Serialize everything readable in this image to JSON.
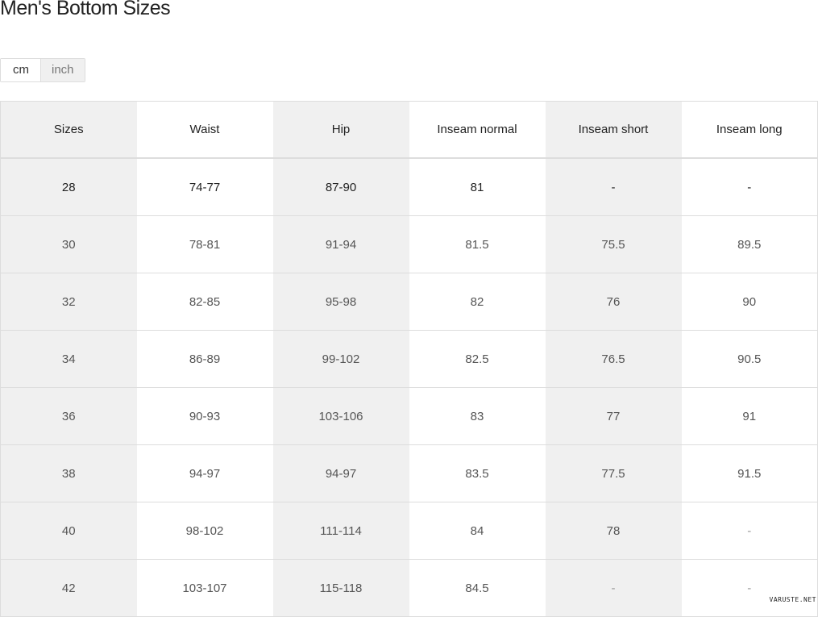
{
  "title": "Men's Bottom Sizes",
  "units": {
    "selected": "cm",
    "options": [
      "cm",
      "inch"
    ]
  },
  "table": {
    "headers": [
      "Sizes",
      "Waist",
      "Hip",
      "Inseam normal",
      "Inseam short",
      "Inseam long"
    ],
    "rows": [
      [
        "28",
        "74-77",
        "87-90",
        "81",
        "-",
        "-"
      ],
      [
        "30",
        "78-81",
        "91-94",
        "81.5",
        "75.5",
        "89.5"
      ],
      [
        "32",
        "82-85",
        "95-98",
        "82",
        "76",
        "90"
      ],
      [
        "34",
        "86-89",
        "99-102",
        "82.5",
        "76.5",
        "90.5"
      ],
      [
        "36",
        "90-93",
        "103-106",
        "83",
        "77",
        "91"
      ],
      [
        "38",
        "94-97",
        "94-97",
        "83.5",
        "77.5",
        "91.5"
      ],
      [
        "40",
        "98-102",
        "111-114",
        "84",
        "78",
        "-"
      ],
      [
        "42",
        "103-107",
        "115-118",
        "84.5",
        "-",
        "-"
      ]
    ]
  },
  "watermark": "VARUSTE.NET"
}
